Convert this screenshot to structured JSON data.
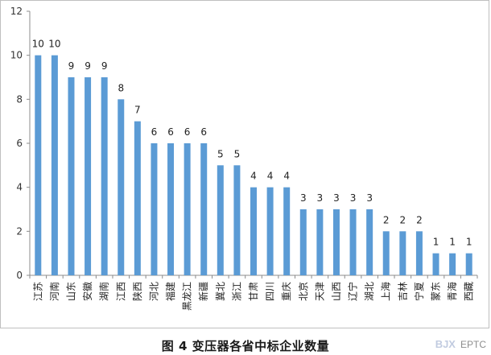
{
  "chart_data": {
    "type": "bar",
    "title": "",
    "xlabel": "",
    "ylabel": "",
    "ylim": [
      0,
      12
    ],
    "yticks": [
      0,
      2,
      4,
      6,
      8,
      10,
      12
    ],
    "grid": false,
    "bar_color": "#5b9bd5",
    "categories": [
      "江苏",
      "河南",
      "山东",
      "安徽",
      "湖南",
      "江西",
      "陕西",
      "河北",
      "福建",
      "黑龙江",
      "新疆",
      "冀北",
      "浙江",
      "甘肃",
      "四川",
      "重庆",
      "北京",
      "天津",
      "山西",
      "辽宁",
      "湖北",
      "上海",
      "吉林",
      "宁夏",
      "蒙东",
      "青海",
      "西藏"
    ],
    "values": [
      10,
      10,
      9,
      9,
      9,
      8,
      7,
      6,
      6,
      6,
      6,
      5,
      5,
      4,
      4,
      4,
      3,
      3,
      3,
      3,
      3,
      2,
      2,
      2,
      1,
      1,
      1
    ]
  },
  "caption": "图 4 变压器各省中标企业数量",
  "watermark": {
    "logo": "BJX",
    "text": "EPTC"
  }
}
